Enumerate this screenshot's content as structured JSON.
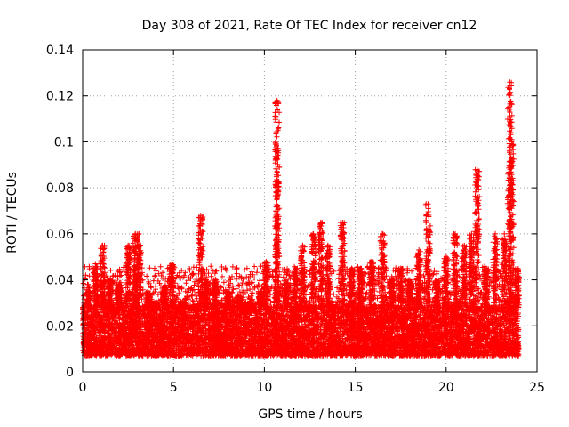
{
  "chart_data": {
    "type": "scatter",
    "title": "Day 308 of 2021, Rate Of TEC Index for receiver cn12",
    "xlabel": "GPS time / hours",
    "ylabel": "ROTI / TECUs",
    "xlim": [
      0,
      25
    ],
    "ylim": [
      0,
      0.14
    ],
    "xticks": [
      0,
      5,
      10,
      15,
      20,
      25
    ],
    "xtick_labels": [
      "0",
      "5",
      "10",
      "15",
      "20",
      "25"
    ],
    "yticks": [
      0,
      0.02,
      0.04,
      0.06,
      0.08,
      0.1,
      0.12,
      0.14
    ],
    "ytick_labels": [
      "0",
      "0.02",
      "0.04",
      "0.06",
      "0.08",
      "0.1",
      "0.12",
      "0.14"
    ],
    "grid": true,
    "marker": "plus",
    "marker_color": "#ff0000",
    "x_coverage": [
      0,
      24
    ],
    "baseline_band": [
      0.007,
      0.028
    ],
    "spikes": [
      {
        "x": 0.3,
        "y": 0.035
      },
      {
        "x": 0.7,
        "y": 0.047
      },
      {
        "x": 1.1,
        "y": 0.055
      },
      {
        "x": 1.5,
        "y": 0.04
      },
      {
        "x": 2.0,
        "y": 0.038
      },
      {
        "x": 2.5,
        "y": 0.055
      },
      {
        "x": 2.9,
        "y": 0.06
      },
      {
        "x": 3.1,
        "y": 0.06
      },
      {
        "x": 3.6,
        "y": 0.035
      },
      {
        "x": 4.0,
        "y": 0.03
      },
      {
        "x": 4.5,
        "y": 0.037
      },
      {
        "x": 4.9,
        "y": 0.047
      },
      {
        "x": 5.5,
        "y": 0.03
      },
      {
        "x": 6.0,
        "y": 0.028
      },
      {
        "x": 6.5,
        "y": 0.068
      },
      {
        "x": 6.8,
        "y": 0.04
      },
      {
        "x": 7.3,
        "y": 0.04
      },
      {
        "x": 8.0,
        "y": 0.035
      },
      {
        "x": 8.6,
        "y": 0.033
      },
      {
        "x": 9.2,
        "y": 0.03
      },
      {
        "x": 9.8,
        "y": 0.035
      },
      {
        "x": 10.1,
        "y": 0.048
      },
      {
        "x": 10.7,
        "y": 0.118
      },
      {
        "x": 10.7,
        "y": 0.083
      },
      {
        "x": 11.2,
        "y": 0.04
      },
      {
        "x": 11.7,
        "y": 0.045
      },
      {
        "x": 12.1,
        "y": 0.055
      },
      {
        "x": 12.7,
        "y": 0.06
      },
      {
        "x": 13.1,
        "y": 0.065
      },
      {
        "x": 13.5,
        "y": 0.055
      },
      {
        "x": 14.3,
        "y": 0.065
      },
      {
        "x": 14.8,
        "y": 0.045
      },
      {
        "x": 15.3,
        "y": 0.045
      },
      {
        "x": 15.9,
        "y": 0.048
      },
      {
        "x": 16.5,
        "y": 0.06
      },
      {
        "x": 17.0,
        "y": 0.04
      },
      {
        "x": 17.5,
        "y": 0.045
      },
      {
        "x": 18.0,
        "y": 0.04
      },
      {
        "x": 18.5,
        "y": 0.053
      },
      {
        "x": 19.0,
        "y": 0.073
      },
      {
        "x": 19.5,
        "y": 0.04
      },
      {
        "x": 20.0,
        "y": 0.05
      },
      {
        "x": 20.5,
        "y": 0.06
      },
      {
        "x": 21.0,
        "y": 0.055
      },
      {
        "x": 21.4,
        "y": 0.06
      },
      {
        "x": 21.7,
        "y": 0.088
      },
      {
        "x": 22.2,
        "y": 0.045
      },
      {
        "x": 22.7,
        "y": 0.06
      },
      {
        "x": 23.2,
        "y": 0.06
      },
      {
        "x": 23.5,
        "y": 0.126
      },
      {
        "x": 23.6,
        "y": 0.1
      },
      {
        "x": 23.9,
        "y": 0.045
      }
    ]
  }
}
